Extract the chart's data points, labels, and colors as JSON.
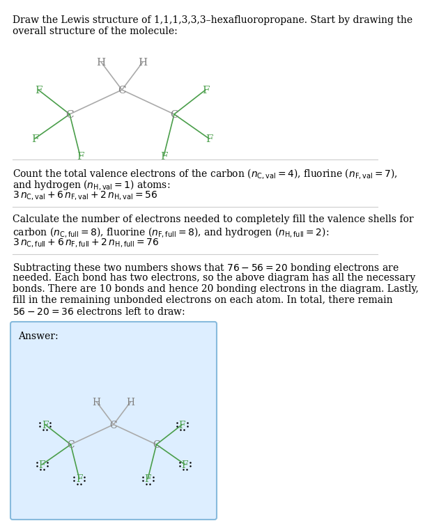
{
  "title_lines": [
    "Draw the Lewis structure of 1,1,1,3,3,3–hexafluoropropane. Start by drawing the",
    "overall structure of the molecule:"
  ],
  "section1_lines": [
    "Count the total valence electrons of the carbon ($n_\\mathrm{C,val} = 4$), fluorine ($n_\\mathrm{F,val} = 7$),",
    "and hydrogen ($n_\\mathrm{H,val} = 1$) atoms:",
    "$3\\, n_\\mathrm{C,val} + 6\\, n_\\mathrm{F,val} + 2\\, n_\\mathrm{H,val} = 56$"
  ],
  "section2_lines": [
    "Calculate the number of electrons needed to completely fill the valence shells for",
    "carbon ($n_\\mathrm{C,full} = 8$), fluorine ($n_\\mathrm{F,full} = 8$), and hydrogen ($n_\\mathrm{H,full} = 2$):",
    "$3\\, n_\\mathrm{C,full} + 6\\, n_\\mathrm{F,full} + 2\\, n_\\mathrm{H,full} = 76$"
  ],
  "section3_lines": [
    "Subtracting these two numbers shows that $76 - 56 = 20$ bonding electrons are",
    "needed. Each bond has two electrons, so the above diagram has all the necessary",
    "bonds. There are 10 bonds and hence 20 bonding electrons in the diagram. Lastly,",
    "fill in the remaining unbonded electrons on each atom. In total, there remain",
    "$56 - 20 = 36$ electrons left to draw:"
  ],
  "answer_label": "Answer:",
  "atom_color_C": "#808080",
  "atom_color_F": "#4a9e4a",
  "atom_color_H": "#808080",
  "bond_color": "#aaaaaa",
  "bond_color_F": "#4a9e4a",
  "bg_color": "#ffffff",
  "answer_bg": "#ddeeff",
  "answer_border": "#88bbdd"
}
